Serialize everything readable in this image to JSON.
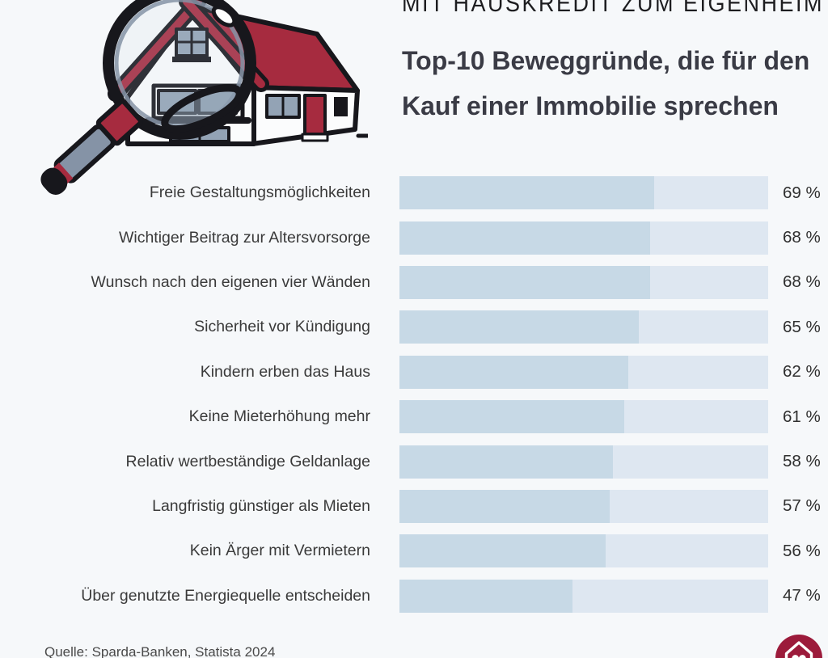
{
  "header": {
    "kicker": "MIT HAUSKREDIT ZUM EIGENHEIM",
    "title_line1": "Top-10 Beweggründe, die für den",
    "title_line2": "Kauf einer Immobilie sprechen"
  },
  "chart_data": {
    "type": "bar",
    "orientation": "horizontal",
    "title": "Top-10 Beweggründe, die für den Kauf einer Immobilie sprechen",
    "categories": [
      "Freie Gestaltungsmöglichkeiten",
      "Wichtiger Beitrag zur Altersvorsorge",
      "Wunsch nach den eigenen vier Wänden",
      "Sicherheit vor Kündigung",
      "Kindern erben das Haus",
      "Keine Mieterhöhung mehr",
      "Relativ wertbeständige Geldanlage",
      "Langfristig günstiger als Mieten",
      "Kein Ärger mit Vermietern",
      "Über genutzte Energiequelle entscheiden"
    ],
    "values": [
      69,
      68,
      68,
      65,
      62,
      61,
      58,
      57,
      56,
      47
    ],
    "value_labels": [
      "69 %",
      "68 %",
      "68 %",
      "65 %",
      "62 %",
      "61 %",
      "58 %",
      "57 %",
      "56 %",
      "47 %"
    ],
    "unit": "%",
    "xlim": [
      0,
      100
    ],
    "grid": false,
    "legend": false,
    "bar_color": "#c7d9e6",
    "track_color": "#dee7f1"
  },
  "footer": {
    "source": "Quelle: Sparda-Banken, Statista 2024"
  },
  "branding": {
    "logo_name": "heart-house-badge",
    "logo_color": "#9c1b3b"
  },
  "illustration": {
    "name": "house-with-magnifying-glass",
    "roof_color": "#a62b3f",
    "window_color": "#93a3b5",
    "outline_color": "#17171c"
  }
}
